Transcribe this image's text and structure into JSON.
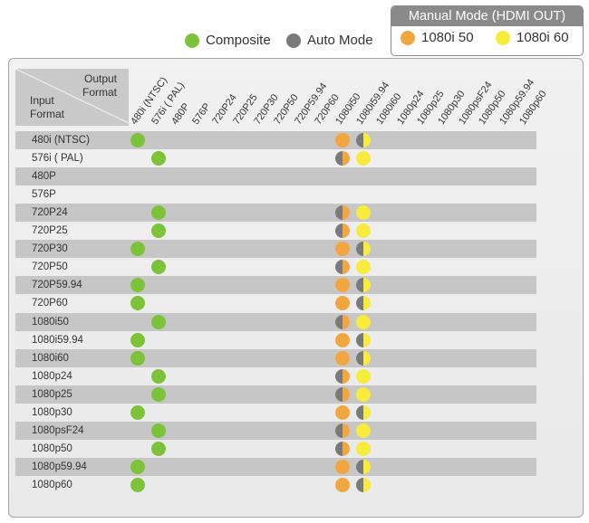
{
  "legend": {
    "composite": "Composite",
    "auto_mode": "Auto Mode",
    "manual_title": "Manual Mode (HDMI OUT)",
    "manual_50": "1080i 50",
    "manual_60": "1080i 60"
  },
  "colors": {
    "composite": "#7cc33a",
    "auto": "#7a7a7c",
    "manual_50": "#f2a640",
    "manual_60": "#f7ec3c"
  },
  "corner": {
    "output_line1": "Output",
    "output_line2": "Format",
    "input_line1": "Input",
    "input_line2": "Format"
  },
  "columns": [
    "480i (NTSC)",
    "576i ( PAL)",
    "480P",
    "576P",
    "720P24",
    "720P25",
    "720P30",
    "720P50",
    "720P59.94",
    "720P60",
    "1080i50",
    "1080i59.94",
    "1080i60",
    "1080p24",
    "1080p25",
    "1080p30",
    "1080psF24",
    "1080p50",
    "1080p59.94",
    "1080p60"
  ],
  "rows": [
    {
      "label": "480i (NTSC)",
      "composite": "480i (NTSC)",
      "auto_50": false,
      "hdmi": "auto+60"
    },
    {
      "label": "576i ( PAL)",
      "composite": "576i ( PAL)",
      "auto_50": true,
      "hdmi": "60"
    },
    {
      "label": "480P",
      "composite": "",
      "auto_50": null,
      "hdmi": ""
    },
    {
      "label": "576P",
      "composite": "",
      "auto_50": null,
      "hdmi": ""
    },
    {
      "label": "720P24",
      "composite": "576i ( PAL)",
      "auto_50": true,
      "hdmi": "60"
    },
    {
      "label": "720P25",
      "composite": "576i ( PAL)",
      "auto_50": true,
      "hdmi": "60"
    },
    {
      "label": "720P30",
      "composite": "480i (NTSC)",
      "auto_50": false,
      "hdmi": "auto+60"
    },
    {
      "label": "720P50",
      "composite": "576i ( PAL)",
      "auto_50": true,
      "hdmi": "60"
    },
    {
      "label": "720P59.94",
      "composite": "480i (NTSC)",
      "auto_50": false,
      "hdmi": "auto+60"
    },
    {
      "label": "720P60",
      "composite": "480i (NTSC)",
      "auto_50": false,
      "hdmi": "auto+60"
    },
    {
      "label": "1080i50",
      "composite": "576i ( PAL)",
      "auto_50": true,
      "hdmi": "60"
    },
    {
      "label": "1080i59.94",
      "composite": "480i (NTSC)",
      "auto_50": false,
      "hdmi": "auto+60"
    },
    {
      "label": "1080i60",
      "composite": "480i (NTSC)",
      "auto_50": false,
      "hdmi": "auto+60"
    },
    {
      "label": "1080p24",
      "composite": "576i ( PAL)",
      "auto_50": true,
      "hdmi": "60"
    },
    {
      "label": "1080p25",
      "composite": "576i ( PAL)",
      "auto_50": true,
      "hdmi": "60"
    },
    {
      "label": "1080p30",
      "composite": "480i (NTSC)",
      "auto_50": false,
      "hdmi": "auto+60"
    },
    {
      "label": "1080psF24",
      "composite": "576i ( PAL)",
      "auto_50": true,
      "hdmi": "60"
    },
    {
      "label": "1080p50",
      "composite": "576i ( PAL)",
      "auto_50": true,
      "hdmi": "60"
    },
    {
      "label": "1080p59.94",
      "composite": "480i (NTSC)",
      "auto_50": false,
      "hdmi": "auto+60"
    },
    {
      "label": "1080p60",
      "composite": "480i (NTSC)",
      "auto_50": false,
      "hdmi": "auto+60"
    }
  ]
}
